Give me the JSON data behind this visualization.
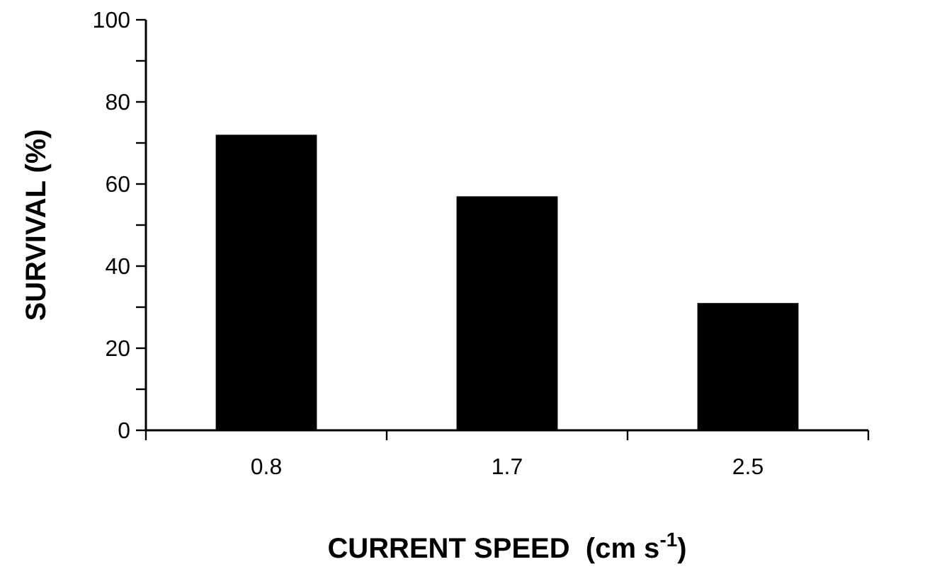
{
  "chart_data": {
    "type": "bar",
    "xlabel": "CURRENT SPEED  (cm s$^{-1}$)",
    "ylabel": "SURVIVAL (%)",
    "categories": [
      "0.8",
      "1.7",
      "2.5"
    ],
    "values": [
      72,
      57,
      31
    ],
    "color": "#000000",
    "ylim": [
      0,
      100
    ],
    "yticks": [
      0,
      {
        "value": 10,
        "label": null
      },
      20,
      {
        "value": 30,
        "label": null
      },
      40,
      {
        "value": 50,
        "label": null
      },
      60,
      {
        "value": 70,
        "label": null
      },
      80,
      {
        "value": 90,
        "label": null
      },
      100
    ],
    "grid": false
  }
}
